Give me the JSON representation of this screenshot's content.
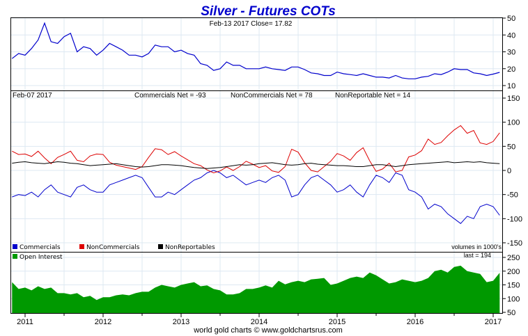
{
  "chart_data": [
    {
      "type": "line",
      "title": "Silver - Futures COTs",
      "annotation": "Feb-13  2017   Close= 17.82",
      "ylim": [
        10,
        50
      ],
      "yticks": [
        "50",
        "40",
        "30",
        "20",
        "10"
      ],
      "grid": true,
      "x": [
        "2010-11",
        "2010-12",
        "2011-01",
        "2011-02",
        "2011-03",
        "2011-04",
        "2011-05",
        "2011-06",
        "2011-07",
        "2011-08",
        "2011-09",
        "2011-10",
        "2011-11",
        "2011-12",
        "2012-01",
        "2012-02",
        "2012-03",
        "2012-04",
        "2012-05",
        "2012-06",
        "2012-07",
        "2012-08",
        "2012-09",
        "2012-10",
        "2012-11",
        "2012-12",
        "2013-01",
        "2013-02",
        "2013-03",
        "2013-04",
        "2013-05",
        "2013-06",
        "2013-07",
        "2013-08",
        "2013-09",
        "2013-10",
        "2013-11",
        "2013-12",
        "2014-01",
        "2014-02",
        "2014-03",
        "2014-04",
        "2014-05",
        "2014-06",
        "2014-07",
        "2014-08",
        "2014-09",
        "2014-10",
        "2014-11",
        "2014-12",
        "2015-01",
        "2015-02",
        "2015-03",
        "2015-04",
        "2015-05",
        "2015-06",
        "2015-07",
        "2015-08",
        "2015-09",
        "2015-10",
        "2015-11",
        "2015-12",
        "2016-01",
        "2016-02",
        "2016-03",
        "2016-04",
        "2016-05",
        "2016-06",
        "2016-07",
        "2016-08",
        "2016-09",
        "2016-10",
        "2016-11",
        "2016-12",
        "2017-01",
        "2017-02"
      ],
      "series": [
        {
          "color": "#0000cc",
          "values": [
            26,
            29,
            28,
            32,
            37,
            47,
            36,
            35,
            39,
            41,
            30,
            33,
            32,
            28,
            31,
            35,
            33,
            31,
            28,
            28,
            27,
            29,
            34,
            33,
            33,
            30,
            31,
            29,
            28,
            23,
            22,
            19,
            20,
            24,
            22,
            22,
            20,
            20,
            20,
            21,
            20,
            19.5,
            19,
            21,
            21,
            19.5,
            17.5,
            17,
            16,
            16,
            18,
            17,
            16.5,
            16,
            17,
            16,
            15,
            15,
            14.5,
            16,
            14.5,
            14,
            14,
            15,
            15.5,
            17,
            16.5,
            18,
            20,
            19.5,
            19.5,
            17.5,
            17,
            16,
            16.8,
            17.82
          ]
        }
      ]
    },
    {
      "type": "line",
      "annotation_left": "Feb-07  2017",
      "annotations": [
        "Commercials Net = -93",
        "NonCommercials Net = 78",
        "NonReportable Net = 14"
      ],
      "ylim": [
        -150,
        150
      ],
      "yticks": [
        "150",
        "100",
        "50",
        "0",
        "-50",
        "-100",
        "-150"
      ],
      "grid": true,
      "legend": "bottom-left",
      "note": "volumes in 1000's",
      "series": [
        {
          "name": "Commercials",
          "color": "#0000cc",
          "values": [
            -55,
            -50,
            -52,
            -45,
            -55,
            -40,
            -30,
            -45,
            -50,
            -55,
            -35,
            -30,
            -40,
            -45,
            -45,
            -30,
            -25,
            -20,
            -15,
            -10,
            -15,
            -35,
            -55,
            -55,
            -45,
            -50,
            -40,
            -30,
            -20,
            -15,
            -5,
            0,
            -5,
            -15,
            -10,
            -20,
            -30,
            -25,
            -20,
            -25,
            -15,
            -10,
            -20,
            -55,
            -50,
            -30,
            -15,
            -10,
            -20,
            -30,
            -45,
            -40,
            -30,
            -45,
            -55,
            -30,
            -10,
            -15,
            -25,
            -5,
            -10,
            -40,
            -45,
            -55,
            -80,
            -70,
            -75,
            -90,
            -100,
            -110,
            -95,
            -100,
            -75,
            -70,
            -75,
            -93
          ]
        },
        {
          "name": "NonCommercials",
          "color": "#dd0000",
          "values": [
            40,
            33,
            34,
            29,
            40,
            26,
            14,
            27,
            33,
            40,
            21,
            18,
            30,
            34,
            33,
            17,
            11,
            8,
            5,
            2,
            8,
            27,
            45,
            43,
            33,
            39,
            30,
            22,
            14,
            10,
            1,
            -5,
            -1,
            7,
            0,
            8,
            19,
            13,
            6,
            10,
            -1,
            -4,
            8,
            44,
            38,
            16,
            0,
            -3,
            8,
            19,
            35,
            30,
            21,
            37,
            47,
            20,
            -2,
            3,
            15,
            -3,
            0,
            28,
            32,
            41,
            65,
            54,
            58,
            72,
            84,
            93,
            77,
            83,
            57,
            54,
            60,
            78
          ]
        },
        {
          "name": "NonReportables",
          "color": "#000000",
          "values": [
            15,
            17,
            18,
            16,
            15,
            14,
            16,
            18,
            17,
            15,
            14,
            12,
            10,
            11,
            12,
            13,
            14,
            12,
            10,
            8,
            7,
            8,
            10,
            12,
            12,
            11,
            10,
            8,
            6,
            5,
            4,
            5,
            6,
            8,
            10,
            12,
            11,
            12,
            14,
            15,
            16,
            14,
            12,
            11,
            12,
            14,
            15,
            13,
            12,
            11,
            10,
            10,
            9,
            8,
            8,
            10,
            12,
            12,
            10,
            8,
            10,
            12,
            13,
            14,
            15,
            16,
            17,
            18,
            16,
            17,
            18,
            17,
            18,
            16,
            15,
            14
          ]
        }
      ]
    },
    {
      "type": "area",
      "legend": "top-left",
      "annotation": "last = 194",
      "ylim": [
        50,
        250
      ],
      "yticks": [
        "250",
        "200",
        "150",
        "100",
        "50"
      ],
      "grid": true,
      "series": [
        {
          "name": "Open Interest",
          "color": "#009900",
          "values": [
            160,
            135,
            140,
            130,
            145,
            135,
            140,
            120,
            120,
            115,
            120,
            105,
            110,
            95,
            105,
            105,
            112,
            115,
            112,
            120,
            125,
            125,
            140,
            150,
            145,
            140,
            150,
            155,
            160,
            145,
            148,
            135,
            130,
            115,
            115,
            120,
            135,
            135,
            140,
            148,
            140,
            165,
            152,
            160,
            165,
            160,
            170,
            172,
            175,
            150,
            155,
            165,
            175,
            180,
            175,
            195,
            185,
            170,
            155,
            160,
            170,
            165,
            160,
            165,
            175,
            200,
            205,
            195,
            215,
            220,
            200,
            195,
            190,
            160,
            165,
            194
          ]
        }
      ]
    }
  ],
  "xticks": [
    "2011",
    "2012",
    "2013",
    "2014",
    "2015",
    "2016",
    "2017"
  ],
  "footer": "world gold charts © www.goldchartsrus.com"
}
